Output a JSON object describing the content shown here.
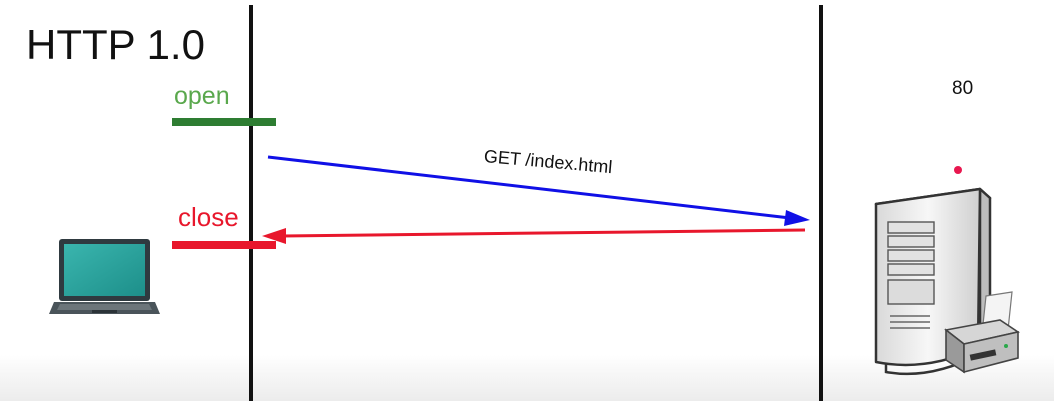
{
  "title": "HTTP 1.0",
  "labels": {
    "open": "open",
    "close": "close",
    "request": "GET /index.html",
    "port": "80"
  },
  "colors": {
    "open": "#2e7d32",
    "open_text": "#5aa84d",
    "close": "#e8172c",
    "request_arrow": "#1010e6",
    "response_arrow": "#e8172c",
    "lifeline": "#111111"
  },
  "icons": {
    "client": "laptop-icon",
    "server": "server-tower-icon",
    "peripheral": "printer-icon"
  }
}
